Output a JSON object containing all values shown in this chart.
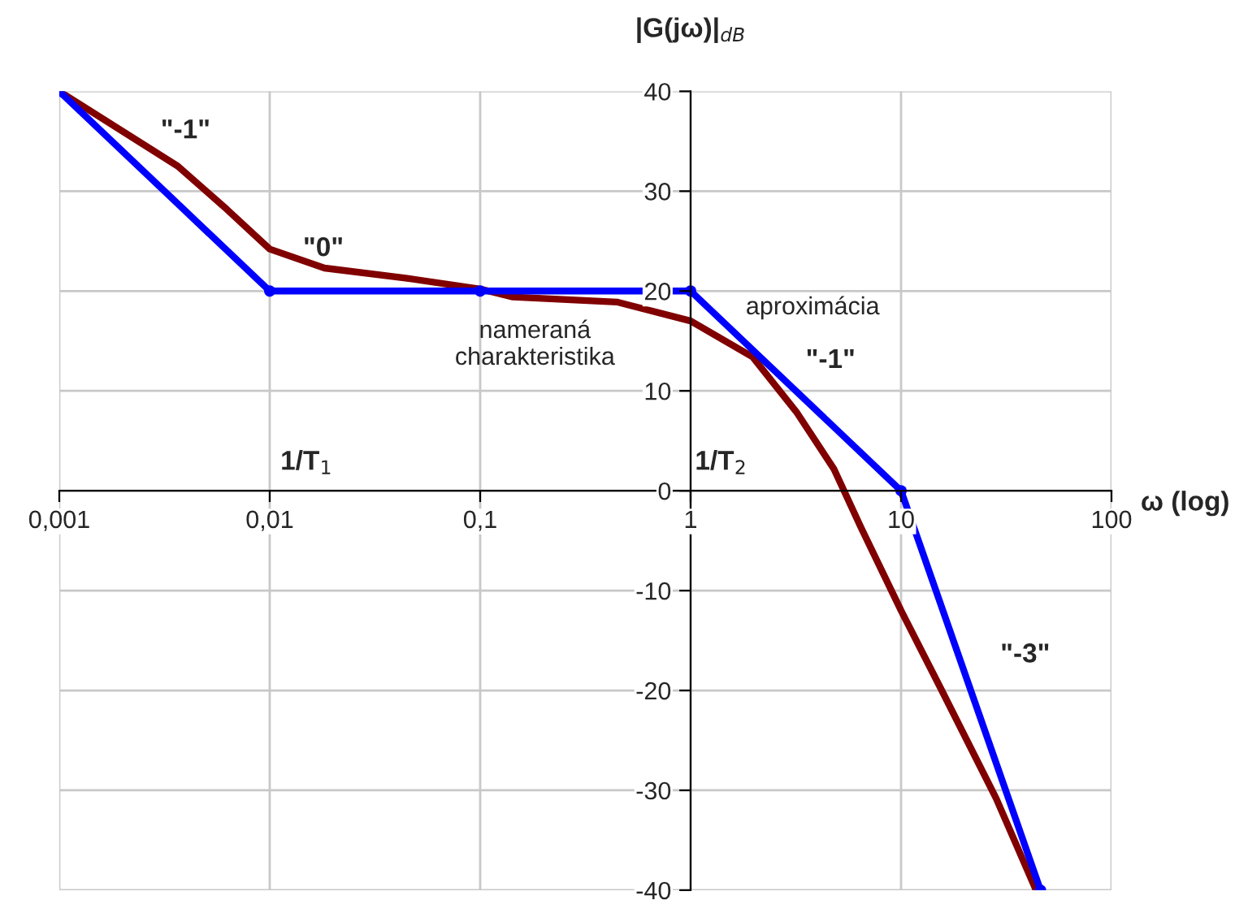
{
  "chart_data": {
    "type": "line",
    "xlabel": "ω (log)",
    "ylabel": "|G(jω)|$_{dB}$",
    "log": "x",
    "grid": true,
    "xlim": [
      0.001,
      100
    ],
    "ylim": [
      -40,
      40
    ],
    "xticks": [
      {
        "value": 0.001,
        "label": "0,001"
      },
      {
        "value": 0.01,
        "label": "0,01"
      },
      {
        "value": 0.1,
        "label": "0,1"
      },
      {
        "value": 1,
        "label": "1"
      },
      {
        "value": 10,
        "label": "10"
      },
      {
        "value": 100,
        "label": "100"
      }
    ],
    "yticks": [
      -40,
      -30,
      -20,
      -10,
      0,
      10,
      20,
      30,
      40
    ],
    "series": [
      {
        "color": "#800000",
        "marker": "none",
        "x": [
          0.001,
          0.00366,
          0.00624,
          0.01,
          0.0182,
          0.0442,
          0.1,
          0.143,
          0.446,
          1,
          1.97,
          3.18,
          4.79,
          6.46,
          10,
          15.7,
          28.3,
          43.8
        ],
        "values": [
          40,
          32.5,
          28.2,
          24.2,
          22.3,
          21.3,
          20.2,
          19.4,
          18.9,
          17.0,
          13.4,
          7.9,
          2.2,
          -3.7,
          -12,
          -20.1,
          -30.8,
          -40
        ]
      },
      {
        "color": "#0000ff",
        "marker": "circle",
        "x": [
          0.001,
          0.01,
          0.1,
          1,
          10,
          46
        ],
        "values": [
          40,
          20,
          20,
          20,
          0,
          -40
        ]
      }
    ],
    "annotations": [
      "\"-1\"",
      "\"0\"",
      "nameraná\ncharakteristika",
      "aproximácia",
      "\"-1\"",
      "\"-3\"",
      "1/T$_{1}$",
      "1/T$_{2}$"
    ]
  }
}
